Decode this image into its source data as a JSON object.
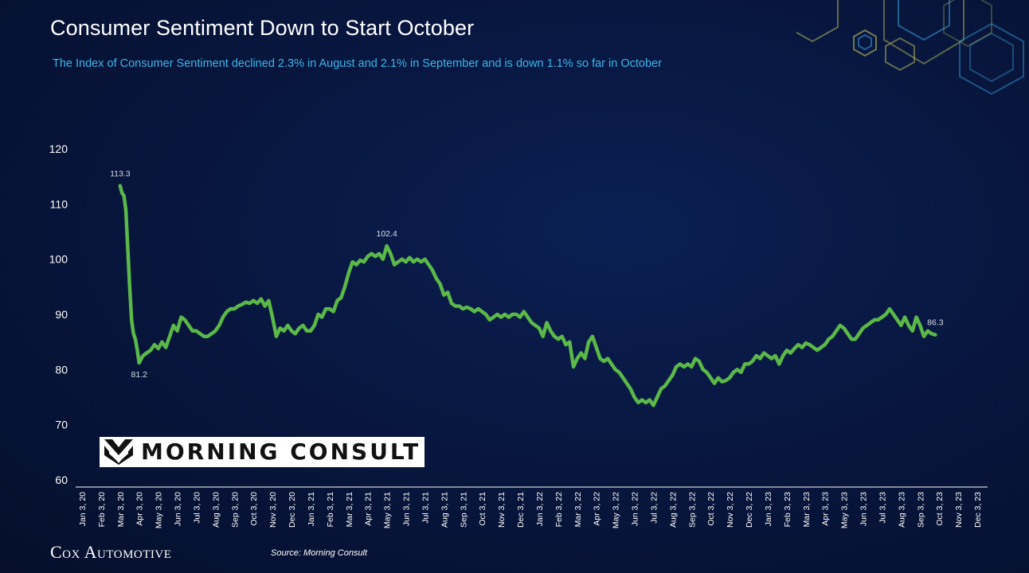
{
  "header": {
    "title": "Consumer Sentiment Down to Start October",
    "subtitle": "The Index of Consumer Sentiment declined 2.3% in August and 2.1% in September and is down 1.1% so far in October"
  },
  "footer": {
    "brand": "Cox Automotive",
    "source": "Source: Morning Consult"
  },
  "logo": {
    "text": "MORNING CONSULT"
  },
  "colors": {
    "line": "#5cb848",
    "axis": "#ffffff",
    "title": "#ffffff",
    "subtitle": "#3fb4e6"
  },
  "chart_data": {
    "type": "line",
    "title": "Consumer Sentiment Down to Start October",
    "xlabel": "",
    "ylabel": "",
    "ylim": [
      60,
      120
    ],
    "yticks": [
      60,
      70,
      80,
      90,
      100,
      110,
      120
    ],
    "grid": false,
    "x_categories": [
      "Jan 3, 20",
      "Feb 3, 20",
      "Mar 3, 20",
      "Apr 3, 20",
      "May 3, 20",
      "Jun 3, 20",
      "Jul 3, 20",
      "Aug 3, 20",
      "Sep 3, 20",
      "Oct 3, 20",
      "Nov 3, 20",
      "Dec 3, 20",
      "Jan 3, 21",
      "Feb 3, 21",
      "Mar 3, 21",
      "Apr 3, 21",
      "May 3, 21",
      "Jun 3, 21",
      "Jul 3, 21",
      "Aug 3, 21",
      "Sep 3, 21",
      "Oct 3, 21",
      "Nov 3, 21",
      "Dec 3, 21",
      "Jan 3, 22",
      "Feb 3, 22",
      "Mar 3, 22",
      "Apr 3, 22",
      "May 3, 22",
      "Jun 3, 22",
      "Jul 3, 22",
      "Aug 3, 22",
      "Sep 3, 22",
      "Oct 3, 22",
      "Nov 3, 22",
      "Dec 3, 22",
      "Jan 3, 23",
      "Feb 3, 23",
      "Mar 3, 23",
      "Apr 3, 23",
      "May 3, 23",
      "Jun 3, 23",
      "Jul 3, 23",
      "Aug 3, 23",
      "Sep 3, 23",
      "Oct 3, 23",
      "Nov 3, 23",
      "Dec 3, 23"
    ],
    "series": [
      {
        "values": [
          [
            2.0,
            113.3
          ],
          [
            2.1,
            112.0
          ],
          [
            2.2,
            111.5
          ],
          [
            2.3,
            109.0
          ],
          [
            2.4,
            102.0
          ],
          [
            2.5,
            95.0
          ],
          [
            2.6,
            89.0
          ],
          [
            2.7,
            86.5
          ],
          [
            2.8,
            85.5
          ],
          [
            2.9,
            83.5
          ],
          [
            3.0,
            81.2
          ],
          [
            3.2,
            82.5
          ],
          [
            3.4,
            83.0
          ],
          [
            3.6,
            83.5
          ],
          [
            3.8,
            84.5
          ],
          [
            4.0,
            83.8
          ],
          [
            4.2,
            85.0
          ],
          [
            4.4,
            84.0
          ],
          [
            4.6,
            86.0
          ],
          [
            4.8,
            88.0
          ],
          [
            5.0,
            87.0
          ],
          [
            5.2,
            89.5
          ],
          [
            5.4,
            89.0
          ],
          [
            5.6,
            88.0
          ],
          [
            5.8,
            87.0
          ],
          [
            6.0,
            87.0
          ],
          [
            6.2,
            86.5
          ],
          [
            6.4,
            86.0
          ],
          [
            6.6,
            86.0
          ],
          [
            6.8,
            86.5
          ],
          [
            7.0,
            87.0
          ],
          [
            7.2,
            88.0
          ],
          [
            7.4,
            89.5
          ],
          [
            7.6,
            90.5
          ],
          [
            7.8,
            91.0
          ],
          [
            8.0,
            91.0
          ],
          [
            8.2,
            91.5
          ],
          [
            8.4,
            91.8
          ],
          [
            8.6,
            92.2
          ],
          [
            8.8,
            92.0
          ],
          [
            9.0,
            92.5
          ],
          [
            9.2,
            92.0
          ],
          [
            9.4,
            92.8
          ],
          [
            9.6,
            91.5
          ],
          [
            9.8,
            92.5
          ],
          [
            10.0,
            89.5
          ],
          [
            10.2,
            86.0
          ],
          [
            10.4,
            87.5
          ],
          [
            10.6,
            87.0
          ],
          [
            10.8,
            88.0
          ],
          [
            11.0,
            87.0
          ],
          [
            11.2,
            86.5
          ],
          [
            11.4,
            87.5
          ],
          [
            11.6,
            88.0
          ],
          [
            11.8,
            87.0
          ],
          [
            12.0,
            87.0
          ],
          [
            12.2,
            88.0
          ],
          [
            12.4,
            90.0
          ],
          [
            12.6,
            89.5
          ],
          [
            12.8,
            91.0
          ],
          [
            13.0,
            91.0
          ],
          [
            13.2,
            90.5
          ],
          [
            13.4,
            92.5
          ],
          [
            13.6,
            93.0
          ],
          [
            13.8,
            95.0
          ],
          [
            14.0,
            97.5
          ],
          [
            14.2,
            99.5
          ],
          [
            14.4,
            99.0
          ],
          [
            14.6,
            99.8
          ],
          [
            14.8,
            99.5
          ],
          [
            15.0,
            100.5
          ],
          [
            15.2,
            101.0
          ],
          [
            15.4,
            100.5
          ],
          [
            15.6,
            101.0
          ],
          [
            15.8,
            100.0
          ],
          [
            16.0,
            102.4
          ],
          [
            16.2,
            101.0
          ],
          [
            16.4,
            99.0
          ],
          [
            16.6,
            99.5
          ],
          [
            16.8,
            100.0
          ],
          [
            17.0,
            99.5
          ],
          [
            17.2,
            100.3
          ],
          [
            17.4,
            99.5
          ],
          [
            17.6,
            100.0
          ],
          [
            17.8,
            99.5
          ],
          [
            18.0,
            100.0
          ],
          [
            18.2,
            99.0
          ],
          [
            18.4,
            98.0
          ],
          [
            18.6,
            96.5
          ],
          [
            18.8,
            95.5
          ],
          [
            19.0,
            93.5
          ],
          [
            19.2,
            94.0
          ],
          [
            19.4,
            92.0
          ],
          [
            19.6,
            91.5
          ],
          [
            19.8,
            91.5
          ],
          [
            20.0,
            91.0
          ],
          [
            20.2,
            91.3
          ],
          [
            20.4,
            91.0
          ],
          [
            20.6,
            90.5
          ],
          [
            20.8,
            91.0
          ],
          [
            21.0,
            90.5
          ],
          [
            21.2,
            90.0
          ],
          [
            21.4,
            89.0
          ],
          [
            21.6,
            89.5
          ],
          [
            21.8,
            90.0
          ],
          [
            22.0,
            89.5
          ],
          [
            22.2,
            90.0
          ],
          [
            22.4,
            89.5
          ],
          [
            22.6,
            90.0
          ],
          [
            22.8,
            90.0
          ],
          [
            23.0,
            89.5
          ],
          [
            23.2,
            90.5
          ],
          [
            23.4,
            89.5
          ],
          [
            23.6,
            88.5
          ],
          [
            23.8,
            88.0
          ],
          [
            24.0,
            87.5
          ],
          [
            24.2,
            86.0
          ],
          [
            24.4,
            88.5
          ],
          [
            24.6,
            87.0
          ],
          [
            24.8,
            86.0
          ],
          [
            25.0,
            85.5
          ],
          [
            25.2,
            86.0
          ],
          [
            25.4,
            84.5
          ],
          [
            25.6,
            85.0
          ],
          [
            25.8,
            80.5
          ],
          [
            26.0,
            82.0
          ],
          [
            26.2,
            83.0
          ],
          [
            26.4,
            82.0
          ],
          [
            26.6,
            85.0
          ],
          [
            26.8,
            86.0
          ],
          [
            27.0,
            84.0
          ],
          [
            27.2,
            82.0
          ],
          [
            27.4,
            81.5
          ],
          [
            27.6,
            82.0
          ],
          [
            27.8,
            81.0
          ],
          [
            28.0,
            80.0
          ],
          [
            28.2,
            79.5
          ],
          [
            28.4,
            78.5
          ],
          [
            28.6,
            77.5
          ],
          [
            28.8,
            76.5
          ],
          [
            29.0,
            75.0
          ],
          [
            29.2,
            74.0
          ],
          [
            29.4,
            74.5
          ],
          [
            29.6,
            74.0
          ],
          [
            29.8,
            74.5
          ],
          [
            30.0,
            73.5
          ],
          [
            30.2,
            75.0
          ],
          [
            30.4,
            76.5
          ],
          [
            30.6,
            77.0
          ],
          [
            30.8,
            78.0
          ],
          [
            31.0,
            79.0
          ],
          [
            31.2,
            80.5
          ],
          [
            31.4,
            81.0
          ],
          [
            31.6,
            80.5
          ],
          [
            31.8,
            81.0
          ],
          [
            32.0,
            80.5
          ],
          [
            32.2,
            82.0
          ],
          [
            32.4,
            81.5
          ],
          [
            32.6,
            80.0
          ],
          [
            32.8,
            79.5
          ],
          [
            33.0,
            78.5
          ],
          [
            33.2,
            77.5
          ],
          [
            33.4,
            78.5
          ],
          [
            33.6,
            77.8
          ],
          [
            33.8,
            78.0
          ],
          [
            34.0,
            78.5
          ],
          [
            34.2,
            79.5
          ],
          [
            34.4,
            80.0
          ],
          [
            34.6,
            79.5
          ],
          [
            34.8,
            81.0
          ],
          [
            35.0,
            81.0
          ],
          [
            35.2,
            81.5
          ],
          [
            35.4,
            82.5
          ],
          [
            35.6,
            82.0
          ],
          [
            35.8,
            83.0
          ],
          [
            36.0,
            82.5
          ],
          [
            36.2,
            82.0
          ],
          [
            36.4,
            82.5
          ],
          [
            36.6,
            81.0
          ],
          [
            36.8,
            82.5
          ],
          [
            37.0,
            83.5
          ],
          [
            37.2,
            83.0
          ],
          [
            37.4,
            83.8
          ],
          [
            37.6,
            84.5
          ],
          [
            37.8,
            84.0
          ],
          [
            38.0,
            84.8
          ],
          [
            38.2,
            84.5
          ],
          [
            38.4,
            84.0
          ],
          [
            38.6,
            83.5
          ],
          [
            38.8,
            84.0
          ],
          [
            39.0,
            84.5
          ],
          [
            39.2,
            85.5
          ],
          [
            39.4,
            86.0
          ],
          [
            39.6,
            87.0
          ],
          [
            39.8,
            88.0
          ],
          [
            40.0,
            87.5
          ],
          [
            40.2,
            86.5
          ],
          [
            40.4,
            85.5
          ],
          [
            40.6,
            85.5
          ],
          [
            40.8,
            86.5
          ],
          [
            41.0,
            87.5
          ],
          [
            41.2,
            88.0
          ],
          [
            41.4,
            88.5
          ],
          [
            41.6,
            89.0
          ],
          [
            41.8,
            89.0
          ],
          [
            42.0,
            89.5
          ],
          [
            42.2,
            90.0
          ],
          [
            42.4,
            91.0
          ],
          [
            42.6,
            90.0
          ],
          [
            42.8,
            89.0
          ],
          [
            43.0,
            88.0
          ],
          [
            43.2,
            89.5
          ],
          [
            43.4,
            88.0
          ],
          [
            43.6,
            87.0
          ],
          [
            43.8,
            89.5
          ],
          [
            44.0,
            88.0
          ],
          [
            44.2,
            86.0
          ],
          [
            44.4,
            87.0
          ],
          [
            44.6,
            86.5
          ],
          [
            44.8,
            86.3
          ]
        ]
      }
    ],
    "annotations": [
      {
        "x": 2.0,
        "y": 113.3,
        "label": "113.3",
        "position": "above"
      },
      {
        "x": 3.0,
        "y": 81.2,
        "label": "81.2",
        "position": "below"
      },
      {
        "x": 16.0,
        "y": 102.4,
        "label": "102.4",
        "position": "above"
      },
      {
        "x": 44.8,
        "y": 86.3,
        "label": "86.3",
        "position": "above"
      }
    ]
  }
}
